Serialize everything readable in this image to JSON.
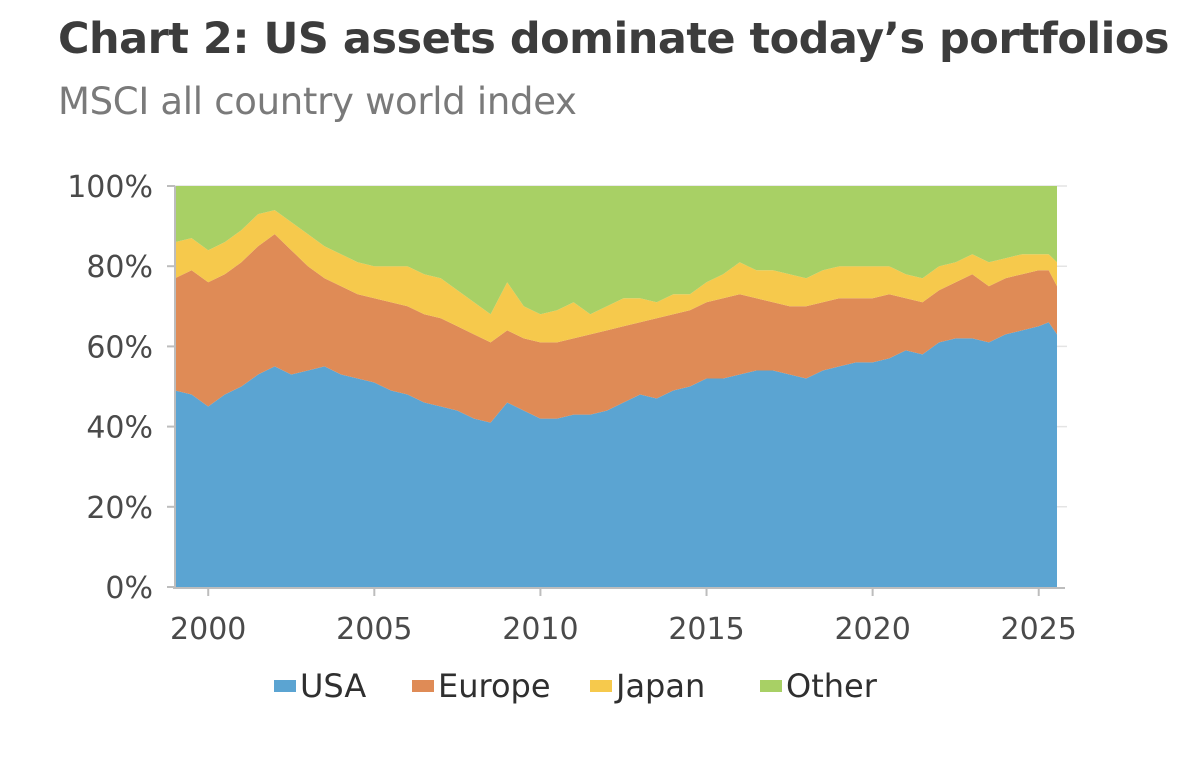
{
  "chart_data": {
    "type": "area",
    "stacked": true,
    "title": "Chart 2: US assets dominate today’s portfolios",
    "subtitle": "MSCI all country world index",
    "xlabel": "",
    "ylabel": "",
    "xlim": [
      1999.0,
      2025.55
    ],
    "ylim": [
      0,
      100
    ],
    "x_ticks": [
      2000,
      2005,
      2010,
      2015,
      2020,
      2025
    ],
    "x_tick_labels": [
      "2000",
      "2005",
      "2010",
      "2015",
      "2020",
      "2025"
    ],
    "y_ticks": [
      0,
      20,
      40,
      60,
      80,
      100
    ],
    "y_tick_labels": [
      "0%",
      "20%",
      "40%",
      "60%",
      "80%",
      "100%"
    ],
    "grid": "horizontal",
    "legend_position": "bottom",
    "x": [
      1999.0,
      1999.5,
      2000.0,
      2000.5,
      2001.0,
      2001.5,
      2002.0,
      2002.5,
      2003.0,
      2003.5,
      2004.0,
      2004.5,
      2005.0,
      2005.5,
      2006.0,
      2006.5,
      2007.0,
      2007.5,
      2008.0,
      2008.5,
      2009.0,
      2009.5,
      2010.0,
      2010.5,
      2011.0,
      2011.5,
      2012.0,
      2012.5,
      2013.0,
      2013.5,
      2014.0,
      2014.5,
      2015.0,
      2015.5,
      2016.0,
      2016.5,
      2017.0,
      2017.5,
      2018.0,
      2018.5,
      2019.0,
      2019.5,
      2020.0,
      2020.5,
      2021.0,
      2021.5,
      2022.0,
      2022.5,
      2023.0,
      2023.5,
      2024.0,
      2024.5,
      2025.0,
      2025.3,
      2025.55
    ],
    "cumulative": {
      "USA": [
        49,
        48,
        45,
        48,
        50,
        53,
        55,
        53,
        54,
        55,
        53,
        52,
        51,
        49,
        48,
        46,
        45,
        44,
        42,
        41,
        46,
        44,
        42,
        42,
        43,
        43,
        44,
        46,
        48,
        47,
        49,
        50,
        52,
        52,
        53,
        54,
        54,
        53,
        52,
        54,
        55,
        56,
        56,
        57,
        59,
        58,
        61,
        62,
        62,
        61,
        63,
        64,
        65,
        66,
        63
      ],
      "Europe": [
        77,
        79,
        76,
        78,
        81,
        85,
        88,
        84,
        80,
        77,
        75,
        73,
        72,
        71,
        70,
        68,
        67,
        65,
        63,
        61,
        64,
        62,
        61,
        61,
        62,
        63,
        64,
        65,
        66,
        67,
        68,
        69,
        71,
        72,
        73,
        72,
        71,
        70,
        70,
        71,
        72,
        72,
        72,
        73,
        72,
        71,
        74,
        76,
        78,
        75,
        77,
        78,
        79,
        79,
        75
      ],
      "Japan": [
        86,
        87,
        84,
        86,
        89,
        93,
        94,
        91,
        88,
        85,
        83,
        81,
        80,
        80,
        80,
        78,
        77,
        74,
        71,
        68,
        76,
        70,
        68,
        69,
        71,
        68,
        70,
        72,
        72,
        71,
        73,
        73,
        76,
        78,
        81,
        79,
        79,
        78,
        77,
        79,
        80,
        80,
        80,
        80,
        78,
        77,
        80,
        81,
        83,
        81,
        82,
        83,
        83,
        83,
        81
      ],
      "Other": [
        100,
        100,
        100,
        100,
        100,
        100,
        100,
        100,
        100,
        100,
        100,
        100,
        100,
        100,
        100,
        100,
        100,
        100,
        100,
        100,
        100,
        100,
        100,
        100,
        100,
        100,
        100,
        100,
        100,
        100,
        100,
        100,
        100,
        100,
        100,
        100,
        100,
        100,
        100,
        100,
        100,
        100,
        100,
        100,
        100,
        100,
        100,
        100,
        100,
        100,
        100,
        100,
        100,
        100,
        100
      ]
    },
    "series": [
      {
        "name": "USA",
        "color": "#5ba4d2"
      },
      {
        "name": "Europe",
        "color": "#df8b56"
      },
      {
        "name": "Japan",
        "color": "#f6c94c"
      },
      {
        "name": "Other",
        "color": "#a8d065"
      }
    ],
    "colors": {
      "grid": "#e4e4e4",
      "axis": "#bdbdbd"
    }
  }
}
